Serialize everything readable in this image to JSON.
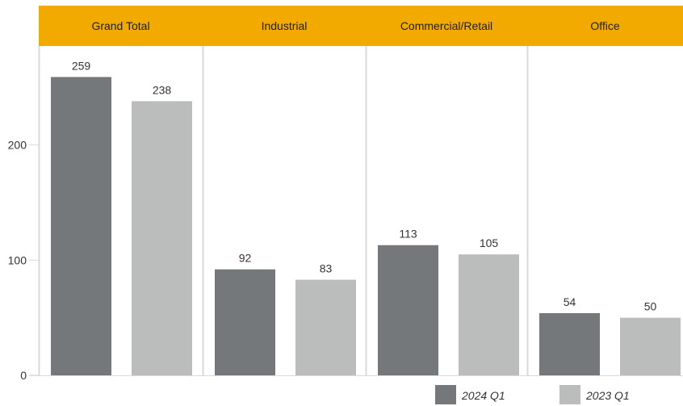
{
  "chart_data": {
    "type": "bar",
    "categories": [
      "Grand Total",
      "Industrial",
      "Commercial/Retail",
      "Office"
    ],
    "series": [
      {
        "name": "2024 Q1",
        "values": [
          259,
          92,
          113,
          54
        ],
        "color": "#75787b"
      },
      {
        "name": "2023 Q1",
        "values": [
          238,
          83,
          105,
          50
        ],
        "color": "#bbbcbc"
      }
    ],
    "y_ticks": [
      "0",
      "100",
      "200"
    ],
    "ylim": [
      0,
      300
    ],
    "header_color": "#f2a900",
    "legend_position": "bottom-right",
    "grid": false
  }
}
